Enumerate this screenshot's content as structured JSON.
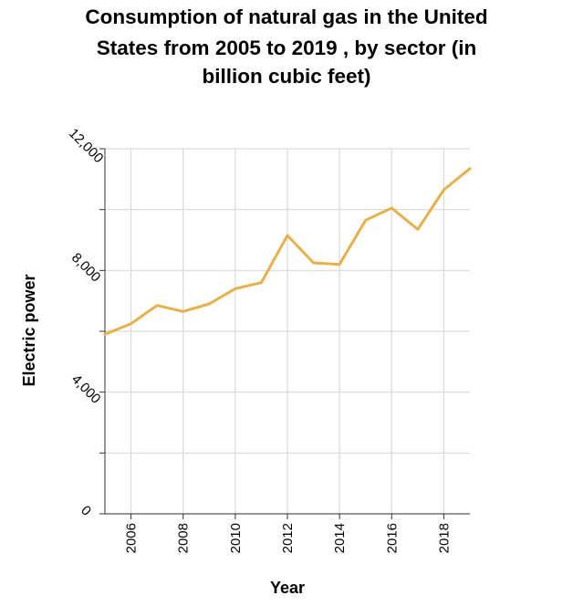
{
  "chart_data": {
    "type": "line",
    "title_lines": [
      "Consumption of natural gas in the United",
      "States from 2005 to 2019 , by sector (in",
      "billion cubic feet)"
    ],
    "xlabel": "Year",
    "ylabel": "Electric power",
    "xlim": [
      2005,
      2019
    ],
    "ylim": [
      0,
      12000
    ],
    "x_ticks": [
      2006,
      2008,
      2010,
      2012,
      2014,
      2016,
      2018
    ],
    "x_tick_labels": [
      "2006",
      "2008",
      "2010",
      "2012",
      "2014",
      "2016",
      "2018"
    ],
    "y_ticks": [
      0,
      2000,
      4000,
      6000,
      8000,
      10000,
      12000
    ],
    "y_tick_labels": [
      "0",
      "",
      "4,000",
      "",
      "8,000",
      "",
      "12,000"
    ],
    "grid": true,
    "series": [
      {
        "color": "#e8b04a",
        "x": [
          2005,
          2006,
          2007,
          2008,
          2009,
          2010,
          2011,
          2012,
          2013,
          2014,
          2015,
          2016,
          2017,
          2018,
          2019
        ],
        "y": [
          5900,
          6250,
          6850,
          6650,
          6900,
          7400,
          7600,
          9150,
          8250,
          8200,
          9650,
          10050,
          9350,
          10650,
          11350
        ]
      }
    ]
  }
}
